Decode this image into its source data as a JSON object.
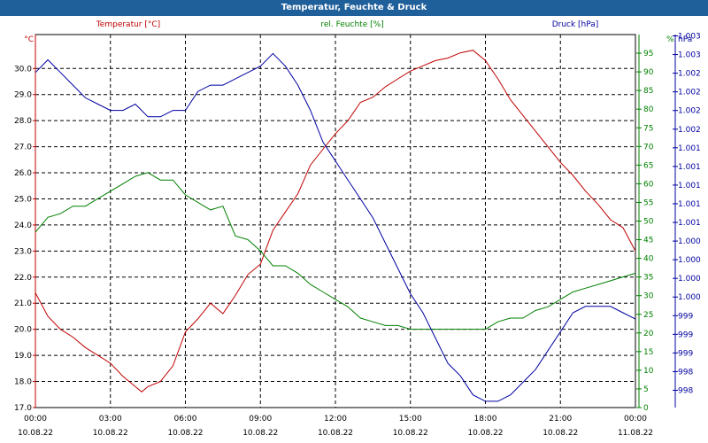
{
  "window": {
    "title": "Temperatur, Feuchte & Druck"
  },
  "chart_data": {
    "type": "line",
    "title": "Temperatur, Feuchte & Druck",
    "grid": true,
    "x_ticks": [
      {
        "time": "00:00",
        "date": "10.08.22"
      },
      {
        "time": "03:00",
        "date": "10.08.22"
      },
      {
        "time": "06:00",
        "date": "10.08.22"
      },
      {
        "time": "09:00",
        "date": "10.08.22"
      },
      {
        "time": "12:00",
        "date": "10.08.22"
      },
      {
        "time": "15:00",
        "date": "10.08.22"
      },
      {
        "time": "18:00",
        "date": "10.08.22"
      },
      {
        "time": "21:00",
        "date": "10.08.22"
      },
      {
        "time": "00:00",
        "date": "11.08.22"
      }
    ],
    "xlim": [
      0,
      24
    ],
    "axes": {
      "temp": {
        "label": "Temperatur [°C]",
        "unit": "°C",
        "color": "#c00000",
        "ylim": [
          17.0,
          31.3
        ],
        "ticks": [
          "17.0",
          "18.0",
          "19.0",
          "20.0",
          "21.0",
          "22.0",
          "23.0",
          "24.0",
          "25.0",
          "26.0",
          "27.0",
          "28.0",
          "29.0",
          "30.0"
        ]
      },
      "hum": {
        "label": "rel. Feuchte [%]",
        "unit": "%",
        "color": "#008000",
        "ylim": [
          0,
          100
        ],
        "ticks": [
          "0",
          "5",
          "10",
          "15",
          "20",
          "25",
          "30",
          "35",
          "40",
          "45",
          "50",
          "55",
          "60",
          "65",
          "70",
          "75",
          "80",
          "85",
          "90",
          "95"
        ]
      },
      "press": {
        "label": "Druck [hPa]",
        "unit": "hPa",
        "color": "#0000a0",
        "ylim": [
          997.8,
          1003.7
        ],
        "ticks": [
          "998",
          "998",
          "999",
          "999",
          "999",
          "1.000",
          "1.000",
          "1.000",
          "1.000",
          "1.001",
          "1.001",
          "1.001",
          "1.001",
          "1.001",
          "1.002",
          "1.002",
          "1.002",
          "1.002",
          "1.003",
          "1.003"
        ]
      }
    },
    "series": [
      {
        "name": "Temperatur [°C]",
        "axis": "temp",
        "color": "#c00000",
        "x": [
          0,
          0.5,
          1,
          1.5,
          2,
          2.5,
          3,
          3.5,
          4,
          4.25,
          4.5,
          5,
          5.5,
          6,
          6.5,
          7,
          7.5,
          8,
          8.5,
          9,
          9.5,
          10,
          10.5,
          11,
          11.5,
          12,
          12.5,
          13,
          13.5,
          14,
          14.5,
          15,
          15.5,
          16,
          16.5,
          17,
          17.5,
          18,
          18.5,
          19,
          19.5,
          20,
          20.5,
          21,
          21.5,
          22,
          22.5,
          23,
          23.5,
          24
        ],
        "values": [
          21.4,
          20.5,
          20.0,
          19.7,
          19.3,
          19.0,
          18.7,
          18.2,
          17.8,
          17.6,
          17.8,
          18.0,
          18.6,
          19.9,
          20.4,
          21.0,
          20.6,
          21.3,
          22.1,
          22.5,
          23.8,
          24.5,
          25.2,
          26.3,
          26.9,
          27.5,
          28.0,
          28.7,
          28.9,
          29.3,
          29.6,
          29.9,
          30.1,
          30.3,
          30.4,
          30.6,
          30.7,
          30.3,
          29.6,
          28.8,
          28.2,
          27.6,
          27.0,
          26.4,
          25.9,
          25.3,
          24.8,
          24.2,
          23.9,
          23.0
        ]
      },
      {
        "name": "rel. Feuchte [%]",
        "axis": "hum",
        "color": "#008000",
        "x": [
          0,
          0.5,
          1,
          1.5,
          2,
          2.5,
          3,
          3.5,
          4,
          4.5,
          5,
          5.5,
          6,
          6.5,
          7,
          7.5,
          8,
          8.5,
          9,
          9.5,
          10,
          10.5,
          11,
          11.5,
          12,
          12.5,
          13,
          13.5,
          14,
          14.5,
          15,
          15.5,
          16,
          16.5,
          17,
          17.5,
          18,
          18.5,
          19,
          19.5,
          20,
          20.5,
          21,
          21.5,
          22,
          22.5,
          23,
          23.5,
          24
        ],
        "values": [
          47,
          51,
          52,
          54,
          54,
          56,
          58,
          60,
          62,
          63,
          61,
          61,
          57,
          55,
          53,
          54,
          46,
          45,
          42,
          38,
          38,
          36,
          33,
          31,
          29,
          27,
          24,
          23,
          22,
          22,
          21,
          21,
          21,
          21,
          21,
          21,
          21,
          23,
          24,
          24,
          26,
          27,
          29,
          31,
          32,
          33,
          34,
          35,
          36
        ]
      },
      {
        "name": "Druck [hPa]",
        "axis": "press",
        "color": "#0000a0",
        "x": [
          0,
          0.5,
          1,
          1.5,
          2,
          2.5,
          3,
          3.5,
          4,
          4.5,
          5,
          5.5,
          6,
          6.5,
          7,
          7.5,
          8,
          8.5,
          9,
          9.5,
          10,
          10.5,
          11,
          11.5,
          12,
          12.5,
          13,
          13.5,
          14,
          14.5,
          15,
          15.5,
          16,
          16.5,
          17,
          17.5,
          18,
          18.5,
          19,
          19.5,
          20,
          20.5,
          21,
          21.5,
          22,
          22.5,
          23,
          23.5,
          24
        ],
        "values": [
          1003.1,
          1003.3,
          1003.1,
          1002.9,
          1002.7,
          1002.6,
          1002.5,
          1002.5,
          1002.6,
          1002.4,
          1002.4,
          1002.5,
          1002.5,
          1002.8,
          1002.9,
          1002.9,
          1003.0,
          1003.1,
          1003.2,
          1003.4,
          1003.2,
          1002.9,
          1002.5,
          1002.0,
          1001.7,
          1001.4,
          1001.1,
          1000.8,
          1000.4,
          1000.0,
          999.6,
          999.3,
          998.9,
          998.5,
          998.3,
          998.0,
          997.9,
          997.9,
          998.0,
          998.2,
          998.4,
          998.7,
          999.0,
          999.3,
          999.4,
          999.4,
          999.4,
          999.3,
          999.2
        ]
      }
    ]
  }
}
